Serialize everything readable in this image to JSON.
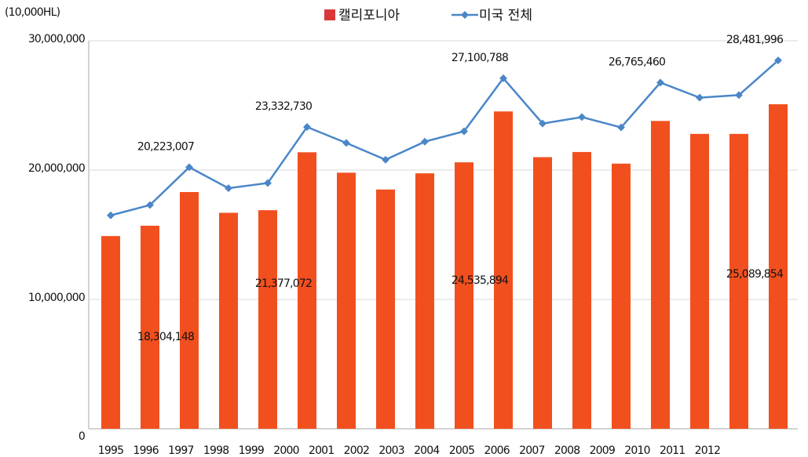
{
  "chart_data": {
    "type": "bar-line",
    "unit_label": "(10,000HL)",
    "categories": [
      "1995",
      "1996",
      "1997",
      "1998",
      "1999",
      "2000",
      "2001",
      "2002",
      "2003",
      "2004",
      "2005",
      "2006",
      "2007",
      "2008",
      "2009",
      "2010",
      "2011",
      "2012"
    ],
    "series": [
      {
        "name": "캘리포니아",
        "type": "bar",
        "color": "#f24f1f",
        "values": [
          14900000,
          15700000,
          18304148,
          16700000,
          16900000,
          21377072,
          19800000,
          18500000,
          19750000,
          20600000,
          24535894,
          21000000,
          21400000,
          20500000,
          23800000,
          22800000,
          22800000,
          25089854
        ],
        "value_labels": [
          null,
          null,
          "18,304,148",
          null,
          null,
          "21,377,072",
          null,
          null,
          null,
          null,
          "24,535,894",
          null,
          null,
          null,
          null,
          null,
          null,
          "25,089,854"
        ]
      },
      {
        "name": "미국 전체",
        "type": "line",
        "color": "#4a86c8",
        "values": [
          16500000,
          17300000,
          20223007,
          18600000,
          19000000,
          23332730,
          22100000,
          20800000,
          22200000,
          23000000,
          27100788,
          23600000,
          24100000,
          23300000,
          26765460,
          25600000,
          25800000,
          28481996
        ],
        "value_labels": [
          null,
          null,
          "20,223,007",
          null,
          null,
          "23,332,730",
          null,
          null,
          null,
          null,
          "27,100,788",
          null,
          null,
          null,
          "26,765,460",
          null,
          null,
          "28,481,996"
        ]
      }
    ],
    "ylim": [
      0,
      30000000
    ],
    "yticks": [
      0,
      {
        "value": 10000000,
        "label": "10,000,000"
      },
      {
        "value": 20000000,
        "label": "20,000,000"
      },
      {
        "value": 30000000,
        "label": "30,000,000"
      }
    ],
    "grid": true,
    "legend": "top"
  }
}
